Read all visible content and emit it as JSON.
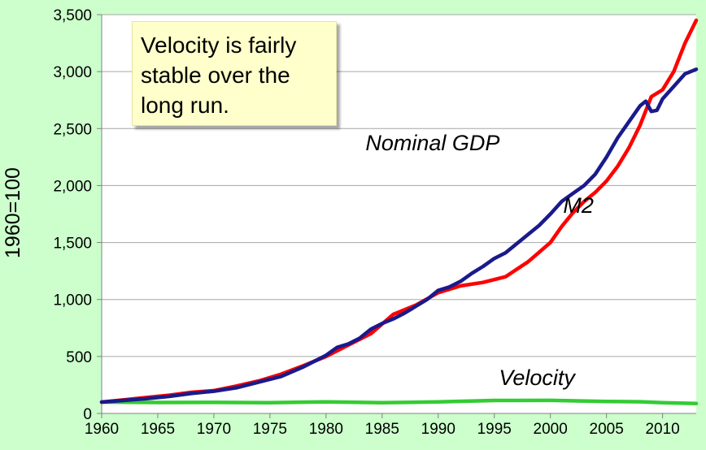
{
  "annotation": {
    "text": "Velocity is fairly stable over the long run."
  },
  "colors": {
    "background": "#ccffcc",
    "plot_area": "#ffffff",
    "nominal_gdp": "#1a1a8c",
    "m2": "#ff0000",
    "velocity": "#33cc33",
    "note_fill": "#ffffcc"
  },
  "chart_data": {
    "type": "line",
    "title": "",
    "xlabel": "",
    "ylabel": "1960=100",
    "xlim": [
      1960,
      2013
    ],
    "ylim": [
      0,
      3500
    ],
    "grid": "horizontal",
    "x_ticks": [
      1960,
      1965,
      1970,
      1975,
      1980,
      1985,
      1990,
      1995,
      2000,
      2005,
      2010
    ],
    "x_tick_labels": [
      "1960",
      "1965",
      "1970",
      "1975",
      "1980",
      "1985",
      "1990",
      "1995",
      "2000",
      "2005",
      "2010"
    ],
    "y_ticks": [
      0,
      500,
      1000,
      1500,
      2000,
      2500,
      3000,
      3500
    ],
    "y_tick_labels": [
      "0",
      "500",
      "1,000",
      "1,500",
      "2,000",
      "2,500",
      "3,000",
      "3,500"
    ],
    "series": [
      {
        "name": "Nominal GDP",
        "color": "#1a1a8c",
        "x": [
          1960,
          1962,
          1964,
          1966,
          1968,
          1970,
          1972,
          1974,
          1976,
          1978,
          1980,
          1981,
          1982,
          1983,
          1984,
          1985,
          1986,
          1987,
          1988,
          1989,
          1990,
          1991,
          1992,
          1993,
          1994,
          1995,
          1996,
          1997,
          1998,
          1999,
          2000,
          2001,
          2002,
          2003,
          2004,
          2005,
          2006,
          2007,
          2008,
          2008.5,
          2009,
          2009.5,
          2010,
          2011,
          2012,
          2013
        ],
        "values": [
          100,
          115,
          130,
          150,
          175,
          195,
          225,
          275,
          325,
          410,
          510,
          580,
          610,
          660,
          740,
          790,
          830,
          880,
          940,
          1000,
          1080,
          1110,
          1160,
          1230,
          1290,
          1360,
          1410,
          1490,
          1570,
          1650,
          1750,
          1860,
          1930,
          2000,
          2100,
          2250,
          2420,
          2560,
          2700,
          2740,
          2650,
          2660,
          2760,
          2870,
          2980,
          3020
        ]
      },
      {
        "name": "M2",
        "color": "#ff0000",
        "x": [
          1960,
          1962,
          1964,
          1966,
          1968,
          1970,
          1972,
          1974,
          1976,
          1978,
          1980,
          1982,
          1984,
          1986,
          1988,
          1990,
          1992,
          1994,
          1996,
          1998,
          2000,
          2001,
          2002,
          2003,
          2004,
          2005,
          2006,
          2007,
          2008,
          2009,
          2010,
          2011,
          2012,
          2013
        ],
        "values": [
          100,
          120,
          140,
          160,
          185,
          200,
          240,
          285,
          345,
          420,
          500,
          600,
          700,
          870,
          950,
          1060,
          1120,
          1150,
          1200,
          1330,
          1500,
          1640,
          1760,
          1860,
          1940,
          2040,
          2170,
          2330,
          2530,
          2780,
          2840,
          3000,
          3250,
          3450
        ]
      },
      {
        "name": "Velocity",
        "color": "#33cc33",
        "x": [
          1960,
          1965,
          1970,
          1975,
          1980,
          1985,
          1990,
          1995,
          2000,
          2005,
          2008,
          2010,
          2013
        ],
        "values": [
          100,
          96,
          97,
          95,
          102,
          95,
          101,
          114,
          115,
          105,
          103,
          94,
          88
        ]
      }
    ],
    "series_labels": [
      {
        "text": "Nominal GDP",
        "anchor_x": 1989.5,
        "anchor_y": 2310
      },
      {
        "text": "M2",
        "anchor_x": 2002.5,
        "anchor_y": 1760
      },
      {
        "text": "Velocity",
        "anchor_x": 1998.8,
        "anchor_y": 250
      }
    ]
  }
}
